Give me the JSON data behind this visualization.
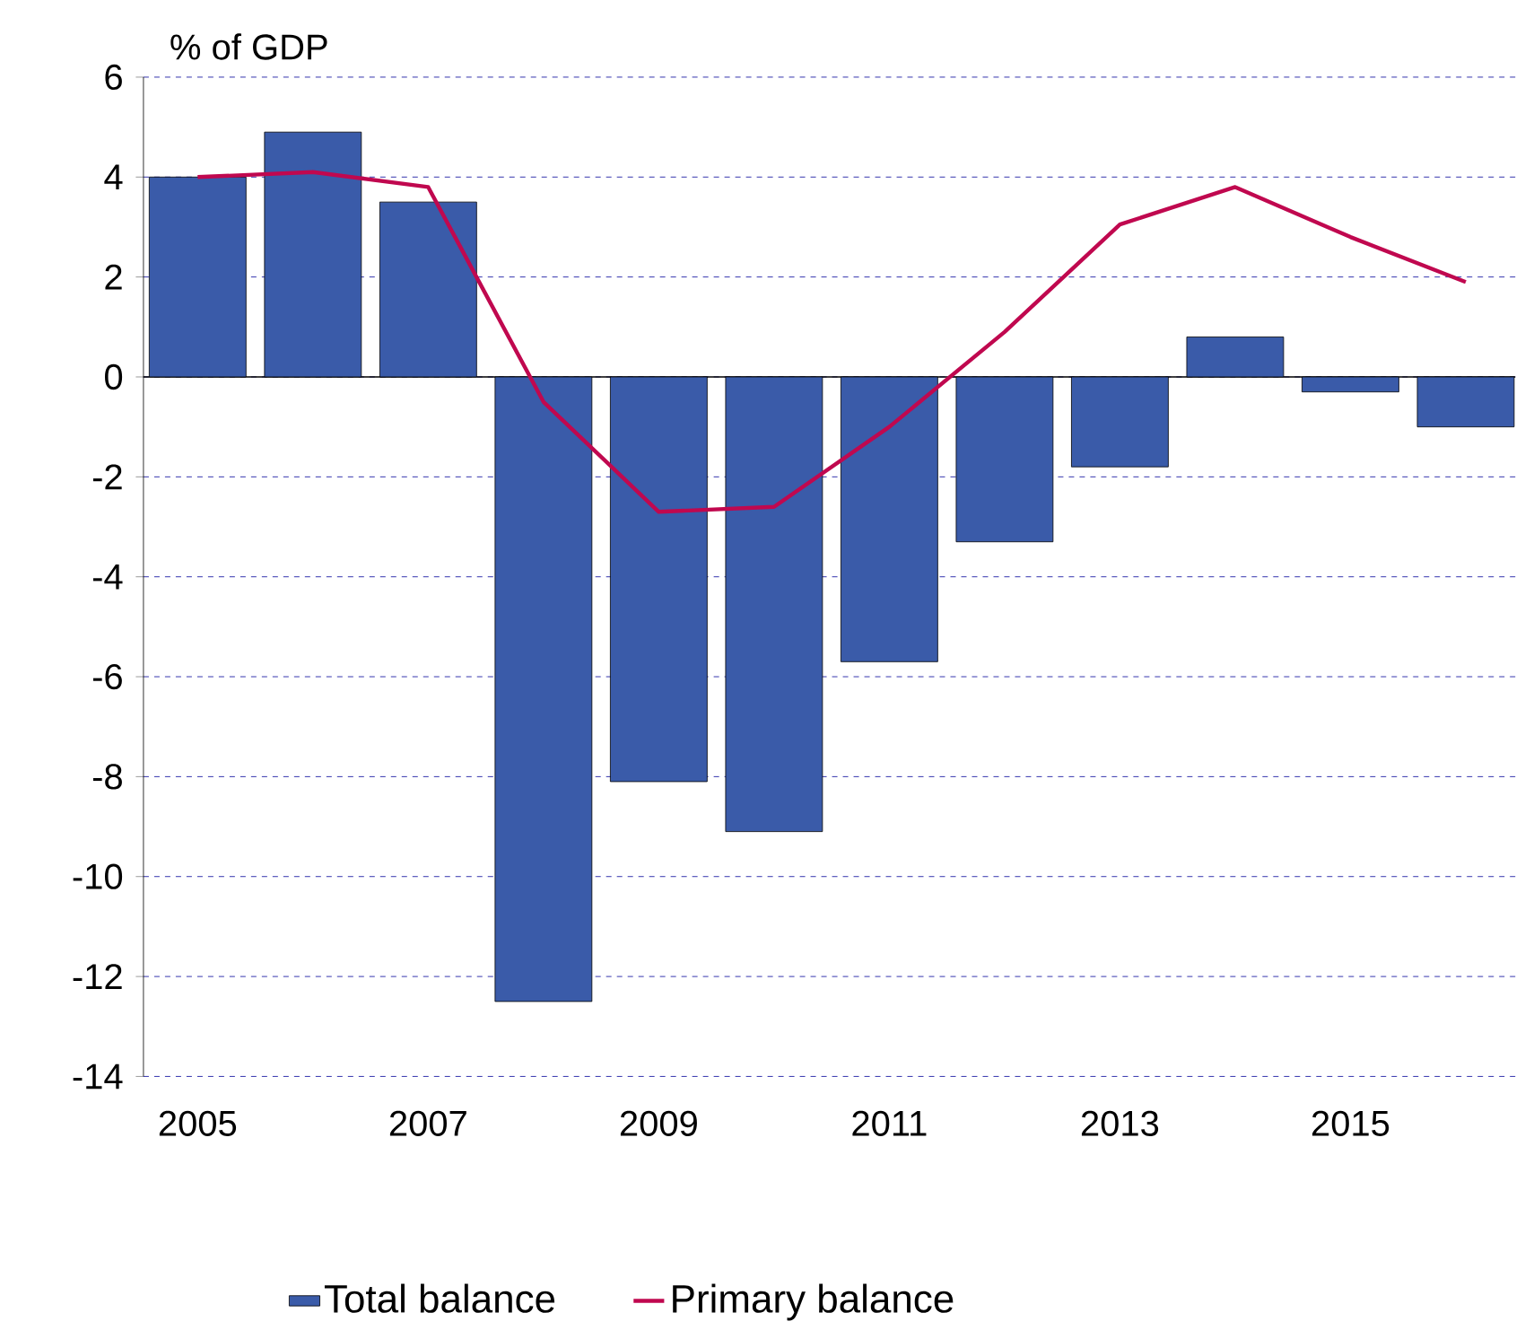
{
  "chart_data": {
    "type": "bar",
    "ylabel": "% of GDP",
    "categories": [
      "2005",
      null,
      "2007",
      null,
      "2009",
      null,
      "2011",
      null,
      "2013",
      null,
      "2015",
      null
    ],
    "series": [
      {
        "name": "Total balance",
        "color": "#3a5ba9",
        "values": [
          4.0,
          4.9,
          3.5,
          -12.5,
          -8.1,
          -9.1,
          -5.7,
          -3.3,
          -1.8,
          0.8,
          -0.3,
          -1.0
        ]
      },
      {
        "name": "Primary balance",
        "type": "line",
        "color": "#c0084f",
        "values": [
          4.0,
          4.1,
          3.8,
          -0.5,
          -2.7,
          -2.6,
          -1.0,
          0.9,
          3.05,
          3.8,
          2.8,
          1.9
        ]
      }
    ],
    "ylim": [
      -14,
      6
    ],
    "yticks": [
      -14,
      -12,
      -10,
      -8,
      -6,
      -4,
      -2,
      0,
      2,
      4,
      6
    ],
    "grid": "y",
    "legend": "bottom"
  }
}
